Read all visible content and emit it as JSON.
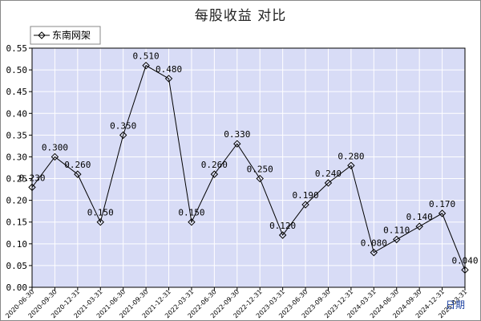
{
  "chart_data": {
    "type": "line",
    "title": "每股收益  对比",
    "xlabel": "日期",
    "ylabel": "",
    "ylim": [
      0,
      0.55
    ],
    "yticks": [
      "0.00",
      "0.05",
      "0.10",
      "0.15",
      "0.20",
      "0.25",
      "0.30",
      "0.35",
      "0.40",
      "0.45",
      "0.50",
      "0.55"
    ],
    "grid": true,
    "legend_position": "top-left",
    "colors": {
      "plot_bg": "#d8dcf6",
      "grid": "#ffffff",
      "line": "#000000",
      "frame": "#888888"
    },
    "categories": [
      "2020-06-30",
      "2020-09-30",
      "2020-12-31",
      "2021-03-31",
      "2021-06-30",
      "2021-09-30",
      "2021-12-31",
      "2022-03-31",
      "2022-06-30",
      "2022-09-30",
      "2022-12-31",
      "2023-03-31",
      "2023-06-30",
      "2023-09-30",
      "2023-12-31",
      "2024-03-31",
      "2024-06-30",
      "2024-09-30",
      "2024-12-31",
      "2025-03-31"
    ],
    "series": [
      {
        "name": "东南网架",
        "values": [
          0.23,
          0.3,
          0.26,
          0.15,
          0.35,
          0.51,
          0.48,
          0.15,
          0.26,
          0.33,
          0.25,
          0.12,
          0.19,
          0.24,
          0.28,
          0.08,
          0.11,
          0.14,
          0.17,
          0.04
        ],
        "labels": [
          "0.230",
          "0.300",
          "0.260",
          "0.150",
          "0.350",
          "0.510",
          "0.480",
          "0.150",
          "0.260",
          "0.330",
          "0.250",
          "0.120",
          "0.190",
          "0.240",
          "0.280",
          "0.080",
          "0.110",
          "0.140",
          "0.170",
          "0.040"
        ]
      }
    ]
  }
}
